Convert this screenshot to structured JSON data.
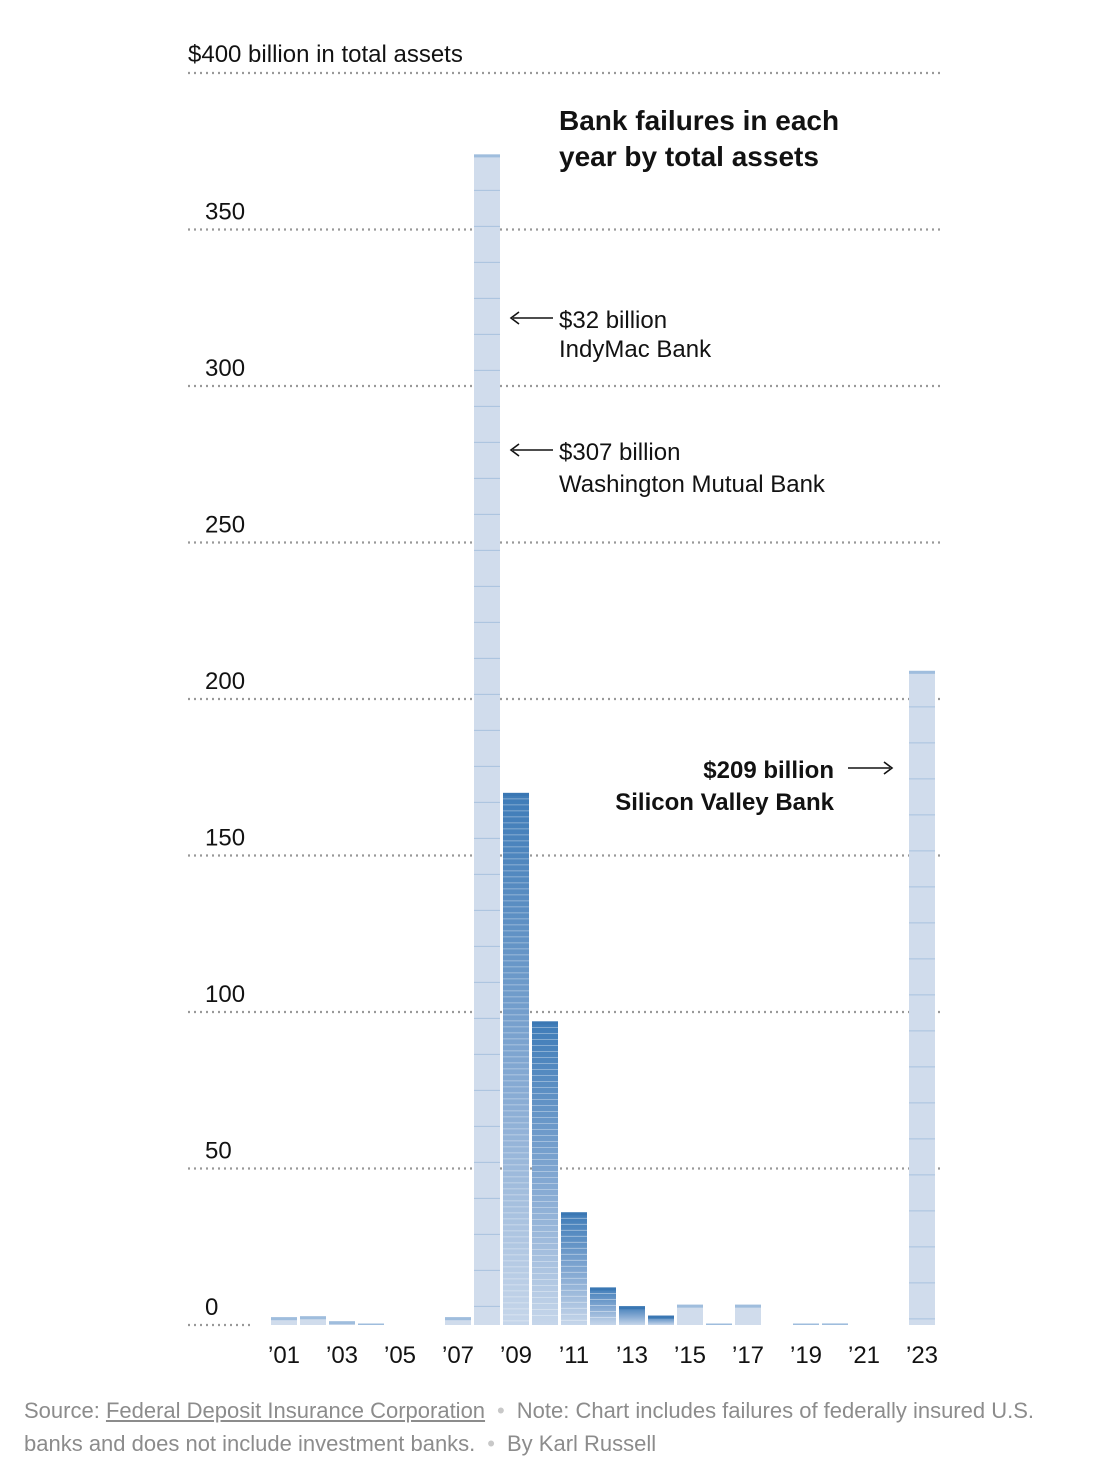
{
  "chart_data": {
    "type": "bar",
    "title": "Bank failures in each year by total assets",
    "title_lines": [
      "Bank failures in each",
      "year by total assets"
    ],
    "ylabel": "$400 billion in total assets",
    "ylim": [
      0,
      400
    ],
    "yticks": [
      {
        "value": 0,
        "label": "0"
      },
      {
        "value": 50,
        "label": "50"
      },
      {
        "value": 100,
        "label": "100"
      },
      {
        "value": 150,
        "label": "150"
      },
      {
        "value": 200,
        "label": "200"
      },
      {
        "value": 250,
        "label": "250"
      },
      {
        "value": 300,
        "label": "300"
      },
      {
        "value": 350,
        "label": "350"
      },
      {
        "value": 400,
        "label": "$400 billion in total assets"
      }
    ],
    "xtick_labels": [
      "’01",
      "’03",
      "’05",
      "’07",
      "’09",
      "’11",
      "’13",
      "’15",
      "’17",
      "’19",
      "’21",
      "’23"
    ],
    "categories": [
      "2001",
      "2002",
      "2003",
      "2004",
      "2005",
      "2006",
      "2007",
      "2008",
      "2009",
      "2010",
      "2011",
      "2012",
      "2013",
      "2014",
      "2015",
      "2016",
      "2017",
      "2018",
      "2019",
      "2020",
      "2021",
      "2022",
      "2023"
    ],
    "values": [
      2.5,
      2.8,
      1.2,
      0.2,
      0,
      0,
      2.5,
      374,
      170,
      97,
      36,
      12,
      6,
      3,
      6.5,
      0.3,
      6.5,
      0,
      0.2,
      0.5,
      0,
      0,
      209
    ],
    "bar_dense": [
      false,
      false,
      false,
      false,
      false,
      false,
      false,
      false,
      true,
      true,
      true,
      true,
      true,
      true,
      false,
      false,
      false,
      false,
      false,
      false,
      false,
      false,
      false
    ],
    "annotations": [
      {
        "value_label": "$32 billion",
        "bank": "IndyMac Bank",
        "year": "2008",
        "arrow": "left"
      },
      {
        "value_label": "$307 billion",
        "bank": "Washington Mutual Bank",
        "year": "2008",
        "arrow": "left"
      },
      {
        "value_label": "$209 billion",
        "bank": "Silicon Valley Bank",
        "year": "2023",
        "arrow": "right",
        "bold": true
      }
    ],
    "colors": {
      "bar_fill": "#d0dcec",
      "bar_dense_top": "#4f88c0",
      "bar_line": "#8fb1d6",
      "grid": "#999999"
    },
    "grid": true
  },
  "footer": {
    "source_prefix": "Source:",
    "source_name": "Federal Deposit Insurance Corporation",
    "separator": "•",
    "note": "Note: Chart includes failures of federally insured U.S. banks and does not include investment banks.",
    "byline": "By Karl Russell"
  }
}
